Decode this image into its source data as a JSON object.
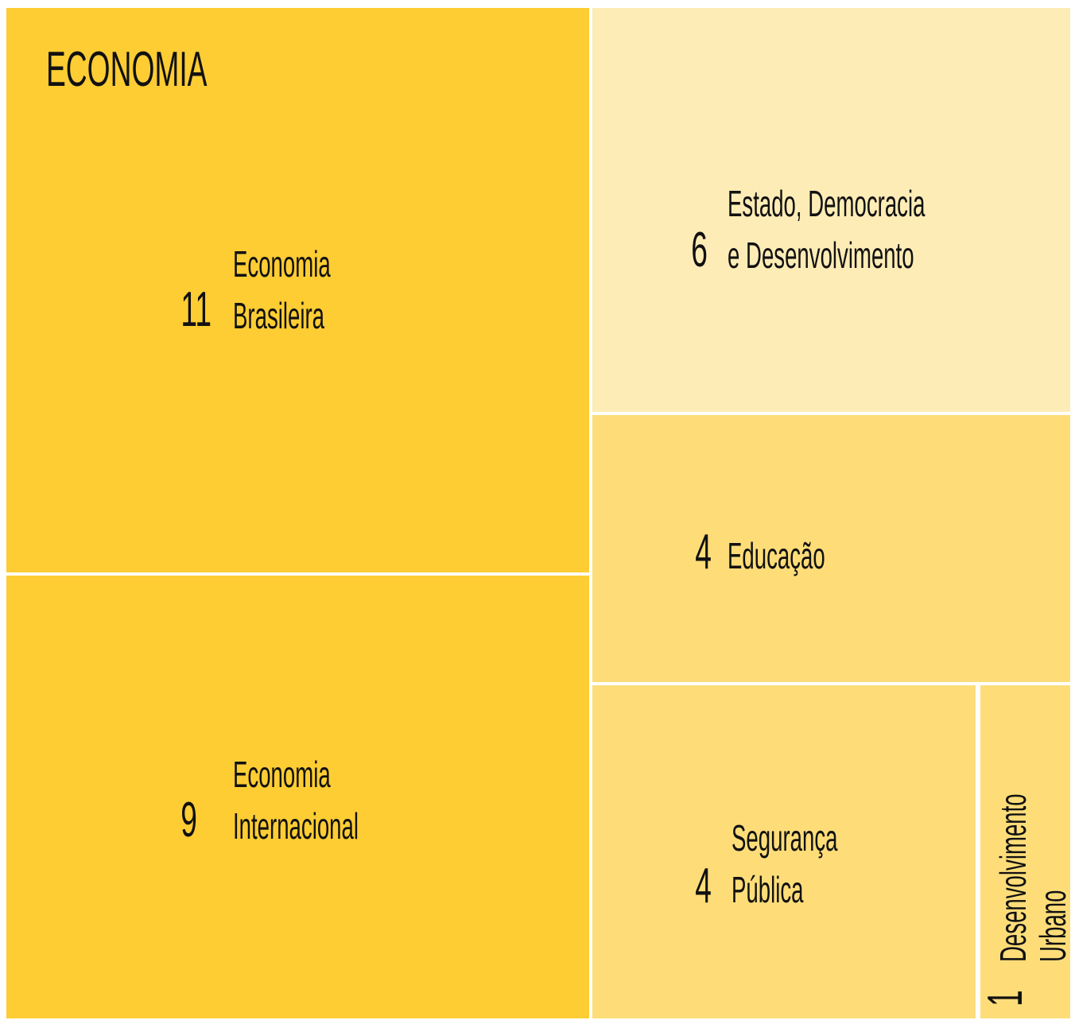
{
  "chart_data": {
    "type": "treemap",
    "title": "ECONOMIA",
    "items": [
      {
        "label_lines": [
          "Economia",
          "Brasileira"
        ],
        "value": 11,
        "color": "#fecd33"
      },
      {
        "label_lines": [
          "Economia",
          "Internacional"
        ],
        "value": 9,
        "color": "#fecd33"
      },
      {
        "label_lines": [
          "Estado, Democracia",
          "e Desenvolvimento"
        ],
        "value": 6,
        "color": "#feecb6"
      },
      {
        "label_lines": [
          "Educação"
        ],
        "value": 4,
        "color": "#fedd79"
      },
      {
        "label_lines": [
          "Segurança",
          "Pública"
        ],
        "value": 4,
        "color": "#fedd79"
      },
      {
        "label_lines": [
          "Desenvolvimento",
          "Urbano"
        ],
        "value": 1,
        "color": "#fedd79"
      }
    ]
  }
}
